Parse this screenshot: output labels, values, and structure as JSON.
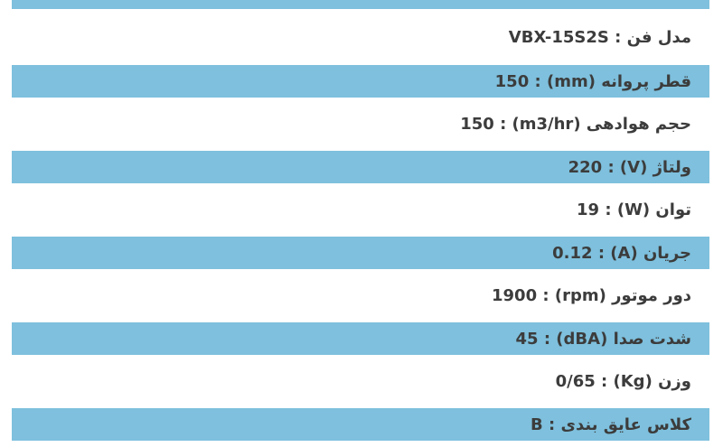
{
  "page": {
    "background": "#ffffff",
    "accent_blue": "#7ec0dd",
    "text_color": "#3c3c3c"
  },
  "separator": " : ",
  "table": {
    "rows": [
      {
        "label": "مدل فن",
        "value": "VBX-15S2S",
        "highlight": false
      },
      {
        "label": "قطر پروانه (mm)",
        "value": "150",
        "highlight": true
      },
      {
        "label": "حجم هوادهی (m3/hr)",
        "value": "150",
        "highlight": false
      },
      {
        "label": "ولتاژ (V)",
        "value": "220",
        "highlight": true
      },
      {
        "label": "توان (W)",
        "value": "19",
        "highlight": false
      },
      {
        "label": "جریان (A)",
        "value": "0.12",
        "highlight": true
      },
      {
        "label": "دور موتور (rpm)",
        "value": "1900",
        "highlight": false
      },
      {
        "label": "شدت صدا (dBA)",
        "value": "45",
        "highlight": true
      },
      {
        "label": "وزن (Kg)",
        "value": "0/65",
        "highlight": false
      },
      {
        "label": "کلاس عایق بندی",
        "value": "B",
        "highlight": true
      }
    ]
  }
}
